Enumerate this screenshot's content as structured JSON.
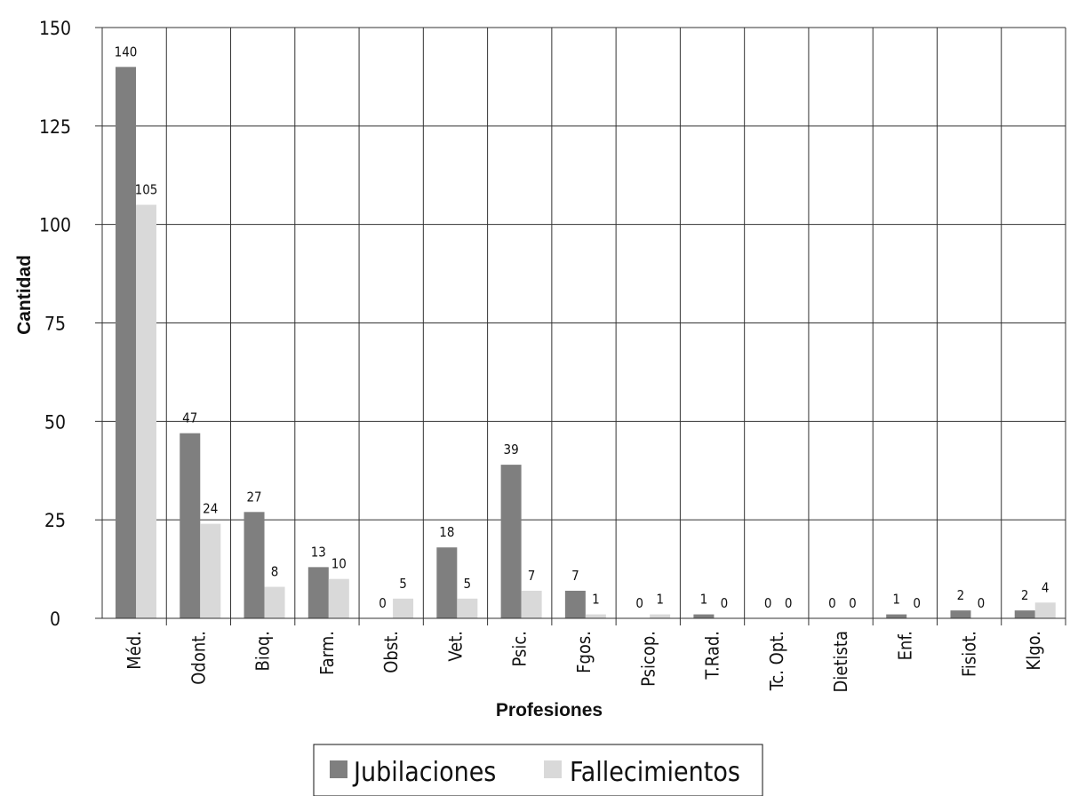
{
  "chart_data": {
    "type": "bar",
    "categories": [
      "Méd.",
      "Odont.",
      "Bioq.",
      "Farm.",
      "Obst.",
      "Vet.",
      "Psic.",
      "Fgos.",
      "Psicop.",
      "T.Rad.",
      "Tc. Opt.",
      "Dietista",
      "Enf.",
      "Fisiot.",
      "Klgo."
    ],
    "series": [
      {
        "name": "Jubilaciones",
        "color": "#7f7f7f",
        "values": [
          140,
          47,
          27,
          13,
          0,
          18,
          39,
          7,
          0,
          1,
          0,
          0,
          1,
          2,
          2
        ]
      },
      {
        "name": "Fallecimientos",
        "color": "#d9d9d9",
        "values": [
          105,
          24,
          8,
          10,
          5,
          5,
          7,
          1,
          1,
          0,
          0,
          0,
          0,
          0,
          4
        ]
      }
    ],
    "xlabel": "Profesiones",
    "ylabel": "Cantidad",
    "ylim": [
      0,
      150
    ],
    "yticks": [
      0,
      25,
      50,
      75,
      100,
      125,
      150
    ],
    "grid": true,
    "legend": "bottom"
  }
}
